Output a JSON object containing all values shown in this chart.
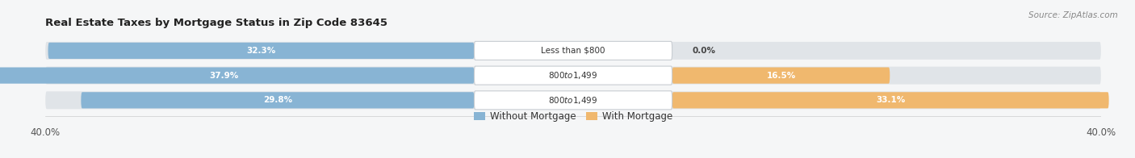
{
  "title": "Real Estate Taxes by Mortgage Status in Zip Code 83645",
  "source": "Source: ZipAtlas.com",
  "rows": [
    {
      "label": "Less than $800",
      "without_mortgage": 32.3,
      "with_mortgage": 0.0
    },
    {
      "label": "$800 to $1,499",
      "without_mortgage": 37.9,
      "with_mortgage": 16.5
    },
    {
      "label": "$800 to $1,499",
      "without_mortgage": 29.8,
      "with_mortgage": 33.1
    }
  ],
  "axis_max": 40.0,
  "blue_color": "#88b4d4",
  "orange_color": "#f0b86e",
  "bar_bg_color": "#e0e4e8",
  "background_color": "#f5f6f7",
  "title_fontsize": 9.5,
  "source_fontsize": 7.5,
  "tick_fontsize": 8.5,
  "label_fontsize": 7.5,
  "bar_value_fontsize": 7.5,
  "legend_fontsize": 8.5
}
